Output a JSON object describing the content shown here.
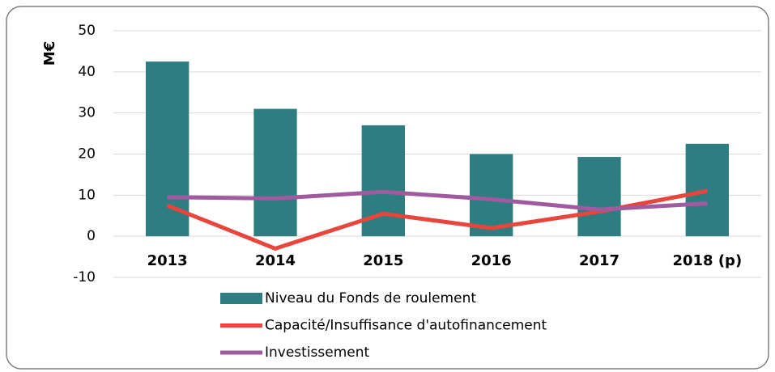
{
  "chart_data": {
    "type": "bar",
    "ylabel": "M€",
    "categories": [
      "2013",
      "2014",
      "2015",
      "2016",
      "2017",
      "2018 (p)"
    ],
    "series": [
      {
        "name": "Niveau du Fonds de roulement",
        "type": "bar",
        "color": "#2e7d80",
        "values": [
          42.5,
          31,
          27,
          20,
          19.3,
          22.5
        ]
      },
      {
        "name": "Capacité/Insuffisance d'autofinancement",
        "type": "line",
        "color": "#e8453c",
        "values": [
          7.5,
          -3,
          5.5,
          2,
          6,
          11
        ]
      },
      {
        "name": "Investissement",
        "type": "line",
        "color": "#a05aa0",
        "values": [
          9.5,
          9.2,
          10.8,
          9,
          6.5,
          8
        ]
      }
    ],
    "ylim": [
      -10,
      50
    ],
    "yticks": [
      -10,
      0,
      10,
      20,
      30,
      40,
      50
    ],
    "grid": true
  }
}
